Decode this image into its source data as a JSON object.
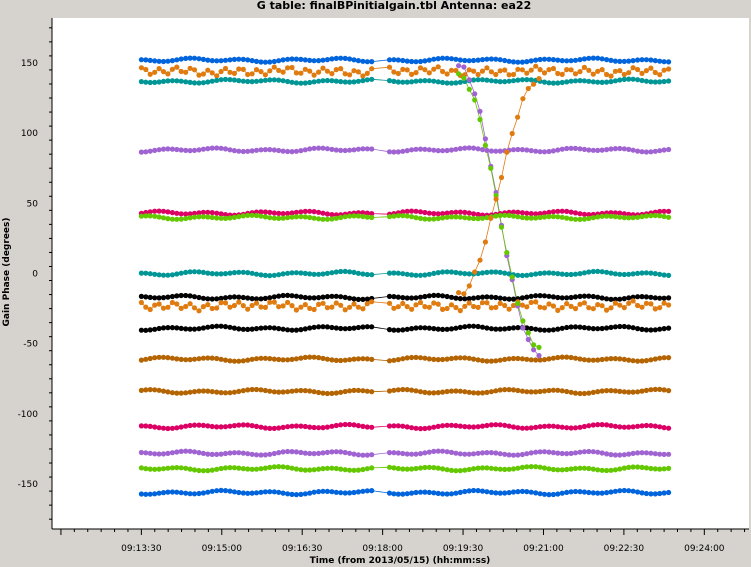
{
  "chart_data": {
    "type": "scatter",
    "title": "G table: finalBPinitialgain.tbl   Antenna: ea22",
    "xlabel": "Time (from 2013/05/15) (hh:mm:ss)",
    "ylabel": "Gain Phase (degrees)",
    "x_tick_labels": [
      "09:13:30",
      "09:15:00",
      "09:16:30",
      "09:18:00",
      "09:19:30",
      "09:21:00",
      "09:22:30",
      "09:24:00"
    ],
    "x_ticks_seconds_of_day": [
      33210,
      33300,
      33390,
      33480,
      33570,
      33660,
      33750,
      33840
    ],
    "xlim_seconds_of_day": [
      33110,
      33890
    ],
    "x_range_seconds_of_day": [
      33210,
      33800
    ],
    "y_ticks": [
      -150,
      -100,
      -50,
      0,
      50,
      100,
      150
    ],
    "ylim": [
      -182,
      182
    ],
    "grid": false,
    "legend": "none",
    "series": [
      {
        "color": "#0064dc",
        "level": 152
      },
      {
        "color": "#e07b10",
        "level": 144
      },
      {
        "color": "#009696",
        "level": 137
      },
      {
        "color": "#a064d2",
        "level": 88
      },
      {
        "color": "#dc0064",
        "level": 43
      },
      {
        "color": "#64c800",
        "level": 40
      },
      {
        "color": "#009696",
        "level": 0
      },
      {
        "color": "#000000",
        "level": -17
      },
      {
        "color": "#e07b10",
        "level": -23
      },
      {
        "color": "#000000",
        "level": -39
      },
      {
        "color": "#b46400",
        "level": -61
      },
      {
        "color": "#b46400",
        "level": -84
      },
      {
        "color": "#dc0064",
        "level": -109
      },
      {
        "color": "#a064d2",
        "level": -128
      },
      {
        "color": "#64c800",
        "level": -139
      },
      {
        "color": "#0064dc",
        "level": -156
      }
    ],
    "transitions": [
      {
        "color": "#a064d2",
        "from": 148,
        "to": -57
      },
      {
        "color": "#64c800",
        "from": 141,
        "to": -52
      },
      {
        "color": "#e07b10",
        "from": -15,
        "to": 138
      }
    ]
  }
}
